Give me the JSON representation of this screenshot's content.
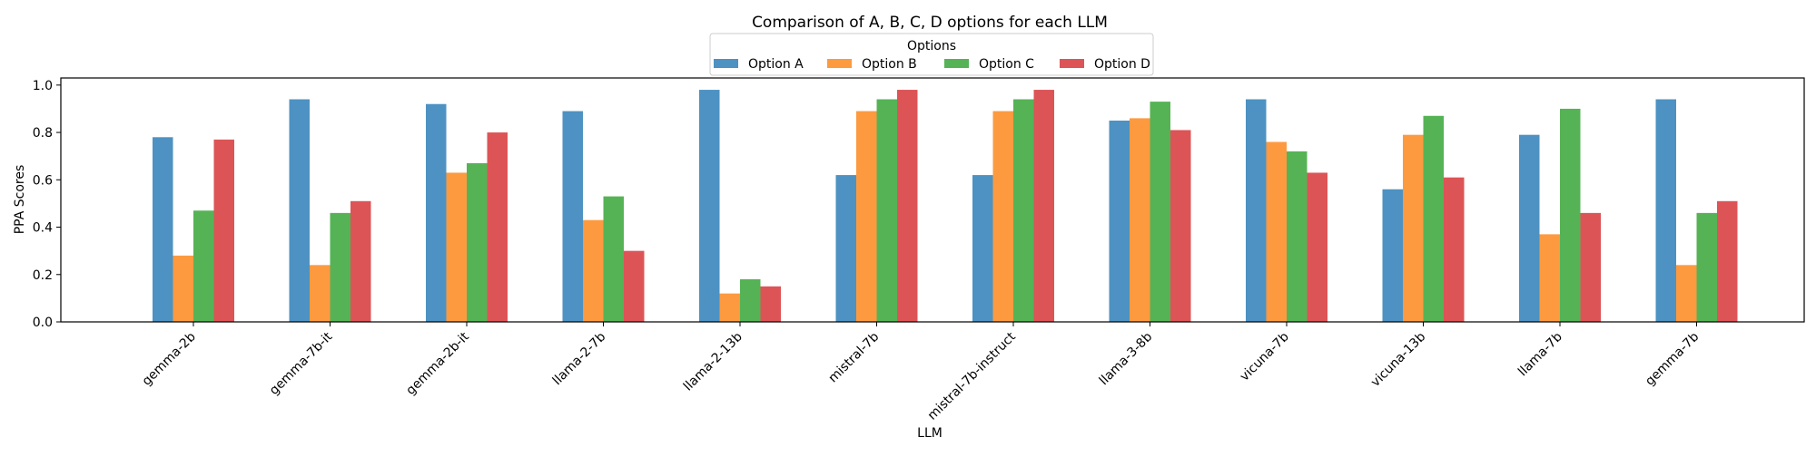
{
  "chart_data": {
    "type": "bar",
    "title": "Comparison of A, B, C, D options for each LLM",
    "xlabel": "LLM",
    "ylabel": "PPA Scores",
    "ylim": [
      0,
      1.03
    ],
    "yticks": [
      "0.0",
      "0.2",
      "0.4",
      "0.6",
      "0.8",
      "1.0"
    ],
    "ytick_values": [
      0,
      0.2,
      0.4,
      0.6,
      0.8,
      1.0
    ],
    "categories": [
      "gemma-2b",
      "gemma-7b-it",
      "gemma-2b-it",
      "llama-2-7b",
      "llama-2-13b",
      "mistral-7b",
      "mistral-7b-instruct",
      "llama-3-8b",
      "vicuna-7b",
      "vicuna-13b",
      "llama-7b",
      "gemma-7b"
    ],
    "legend": {
      "title": "Options",
      "placement": "top-center"
    },
    "grid": false,
    "series": [
      {
        "name": "Option A",
        "color": "#4d92c2",
        "values": [
          0.78,
          0.94,
          0.92,
          0.89,
          0.98,
          0.62,
          0.62,
          0.85,
          0.94,
          0.56,
          0.79,
          0.94
        ]
      },
      {
        "name": "Option B",
        "color": "#fd9a40",
        "values": [
          0.28,
          0.24,
          0.63,
          0.43,
          0.12,
          0.89,
          0.89,
          0.86,
          0.76,
          0.79,
          0.37,
          0.24
        ]
      },
      {
        "name": "Option C",
        "color": "#55b355",
        "values": [
          0.47,
          0.46,
          0.67,
          0.53,
          0.18,
          0.94,
          0.94,
          0.93,
          0.72,
          0.87,
          0.9,
          0.46
        ]
      },
      {
        "name": "Option D",
        "color": "#dd5456",
        "values": [
          0.77,
          0.51,
          0.8,
          0.3,
          0.15,
          0.98,
          0.98,
          0.81,
          0.63,
          0.61,
          0.46,
          0.51
        ]
      }
    ]
  }
}
